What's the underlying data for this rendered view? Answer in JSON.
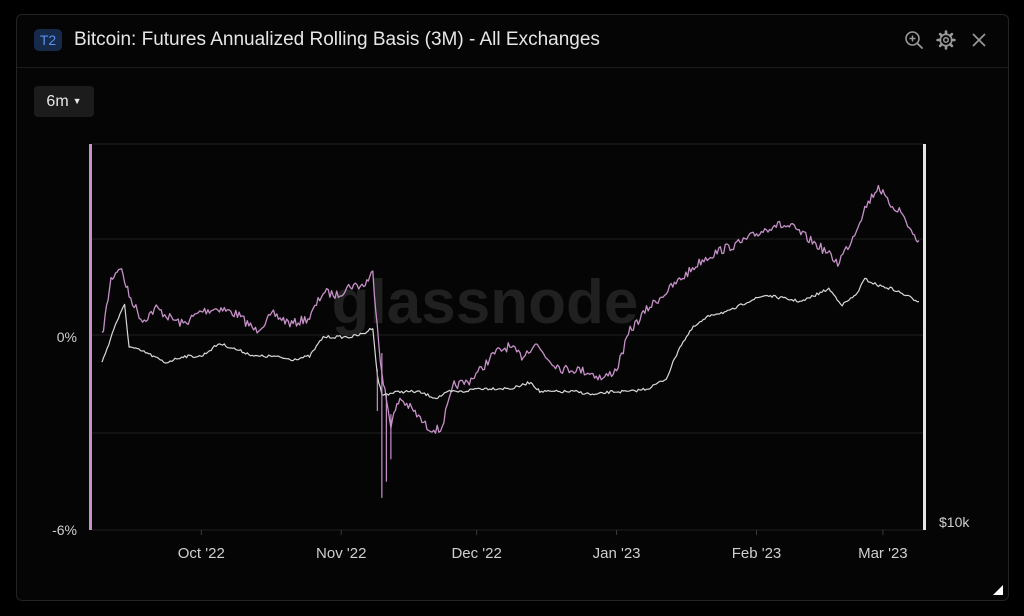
{
  "header": {
    "badge": "T2",
    "title": "Bitcoin: Futures Annualized Rolling Basis (3M) - All Exchanges",
    "icons": [
      "zoom-in-icon",
      "gear-icon",
      "close-icon"
    ]
  },
  "controls": {
    "range_label": "6m"
  },
  "watermark": "glassnode",
  "colors": {
    "basis": "#c690c8",
    "price": "#d8d8d8",
    "background": "#050505",
    "grid": "#202020"
  },
  "chart_data": {
    "type": "line",
    "xlabels": [
      "Oct '22",
      "Nov '22",
      "Dec '22",
      "Jan '23",
      "Feb '23",
      "Mar '23"
    ],
    "x_range": [
      "2022-09-09",
      "2023-03-09"
    ],
    "y_left": {
      "ticks": [
        "0%",
        "-6%"
      ],
      "range": [
        -6,
        6
      ]
    },
    "y_right": {
      "ticks": [
        "$10k"
      ]
    },
    "grid": true,
    "series": [
      {
        "axis": "left",
        "color": "#c690c8",
        "points": [
          [
            "2022-09-09",
            0.0
          ],
          [
            "2022-09-11",
            1.8
          ],
          [
            "2022-09-13",
            2.2
          ],
          [
            "2022-09-15",
            1.3
          ],
          [
            "2022-09-18",
            0.5
          ],
          [
            "2022-09-21",
            0.9
          ],
          [
            "2022-09-24",
            0.6
          ],
          [
            "2022-09-27",
            0.4
          ],
          [
            "2022-10-01",
            0.8
          ],
          [
            "2022-10-05",
            0.9
          ],
          [
            "2022-10-09",
            0.7
          ],
          [
            "2022-10-13",
            0.2
          ],
          [
            "2022-10-17",
            0.7
          ],
          [
            "2022-10-21",
            0.4
          ],
          [
            "2022-10-25",
            0.6
          ],
          [
            "2022-10-28",
            1.4
          ],
          [
            "2022-10-31",
            1.3
          ],
          [
            "2022-11-03",
            1.6
          ],
          [
            "2022-11-06",
            1.6
          ],
          [
            "2022-11-08",
            2.0
          ],
          [
            "2022-11-10",
            -1.2
          ],
          [
            "2022-11-12",
            -2.7
          ],
          [
            "2022-11-14",
            -1.9
          ],
          [
            "2022-11-17",
            -2.3
          ],
          [
            "2022-11-20",
            -2.8
          ],
          [
            "2022-11-23",
            -2.9
          ],
          [
            "2022-11-26",
            -1.5
          ],
          [
            "2022-11-29",
            -1.4
          ],
          [
            "2022-12-02",
            -1.0
          ],
          [
            "2022-12-05",
            -0.5
          ],
          [
            "2022-12-08",
            -0.3
          ],
          [
            "2022-12-11",
            -0.6
          ],
          [
            "2022-12-14",
            -0.2
          ],
          [
            "2022-12-17",
            -0.7
          ],
          [
            "2022-12-20",
            -1.0
          ],
          [
            "2022-12-23",
            -1.0
          ],
          [
            "2022-12-26",
            -1.1
          ],
          [
            "2022-12-29",
            -1.3
          ],
          [
            "2023-01-01",
            -1.0
          ],
          [
            "2023-01-04",
            0.2
          ],
          [
            "2023-01-08",
            0.9
          ],
          [
            "2023-01-12",
            1.4
          ],
          [
            "2023-01-16",
            1.9
          ],
          [
            "2023-01-20",
            2.4
          ],
          [
            "2023-01-24",
            2.7
          ],
          [
            "2023-01-28",
            2.9
          ],
          [
            "2023-02-01",
            3.2
          ],
          [
            "2023-02-05",
            3.5
          ],
          [
            "2023-02-09",
            3.4
          ],
          [
            "2023-02-13",
            3.0
          ],
          [
            "2023-02-16",
            2.7
          ],
          [
            "2023-02-19",
            2.3
          ],
          [
            "2023-02-22",
            3.0
          ],
          [
            "2023-02-25",
            4.0
          ],
          [
            "2023-02-28",
            4.7
          ],
          [
            "2023-03-02",
            4.2
          ],
          [
            "2023-03-05",
            3.9
          ],
          [
            "2023-03-08",
            3.1
          ],
          [
            "2023-03-09",
            3.0
          ]
        ]
      },
      {
        "axis": "right",
        "color": "#d8d8d8",
        "points": [
          [
            "2022-09-09",
            -0.8
          ],
          [
            "2022-09-12",
            0.4
          ],
          [
            "2022-09-14",
            1.0
          ],
          [
            "2022-09-15",
            -0.3
          ],
          [
            "2022-09-19",
            -0.5
          ],
          [
            "2022-09-23",
            -0.8
          ],
          [
            "2022-09-27",
            -0.6
          ],
          [
            "2022-10-01",
            -0.6
          ],
          [
            "2022-10-05",
            -0.2
          ],
          [
            "2022-10-09",
            -0.4
          ],
          [
            "2022-10-13",
            -0.6
          ],
          [
            "2022-10-17",
            -0.6
          ],
          [
            "2022-10-21",
            -0.7
          ],
          [
            "2022-10-25",
            -0.6
          ],
          [
            "2022-10-28",
            0.0
          ],
          [
            "2022-10-31",
            0.0
          ],
          [
            "2022-11-03",
            0.0
          ],
          [
            "2022-11-06",
            0.1
          ],
          [
            "2022-11-08",
            0.3
          ],
          [
            "2022-11-09",
            -1.2
          ],
          [
            "2022-11-10",
            -1.8
          ],
          [
            "2022-11-14",
            -1.7
          ],
          [
            "2022-11-18",
            -1.7
          ],
          [
            "2022-11-22",
            -1.9
          ],
          [
            "2022-11-25",
            -1.7
          ],
          [
            "2022-11-28",
            -1.7
          ],
          [
            "2022-12-01",
            -1.6
          ],
          [
            "2022-12-05",
            -1.6
          ],
          [
            "2022-12-09",
            -1.6
          ],
          [
            "2022-12-13",
            -1.4
          ],
          [
            "2022-12-15",
            -1.7
          ],
          [
            "2022-12-19",
            -1.7
          ],
          [
            "2022-12-23",
            -1.7
          ],
          [
            "2022-12-27",
            -1.8
          ],
          [
            "2022-12-31",
            -1.7
          ],
          [
            "2023-01-04",
            -1.7
          ],
          [
            "2023-01-08",
            -1.6
          ],
          [
            "2023-01-12",
            -1.3
          ],
          [
            "2023-01-15",
            -0.3
          ],
          [
            "2023-01-18",
            0.3
          ],
          [
            "2023-01-22",
            0.7
          ],
          [
            "2023-01-26",
            0.8
          ],
          [
            "2023-01-30",
            1.1
          ],
          [
            "2023-02-03",
            1.3
          ],
          [
            "2023-02-07",
            1.2
          ],
          [
            "2023-02-11",
            1.1
          ],
          [
            "2023-02-14",
            1.3
          ],
          [
            "2023-02-17",
            1.5
          ],
          [
            "2023-02-20",
            1.0
          ],
          [
            "2023-02-23",
            1.3
          ],
          [
            "2023-02-25",
            1.8
          ],
          [
            "2023-02-28",
            1.6
          ],
          [
            "2023-03-03",
            1.5
          ],
          [
            "2023-03-06",
            1.3
          ],
          [
            "2023-03-09",
            1.1
          ]
        ]
      }
    ]
  }
}
